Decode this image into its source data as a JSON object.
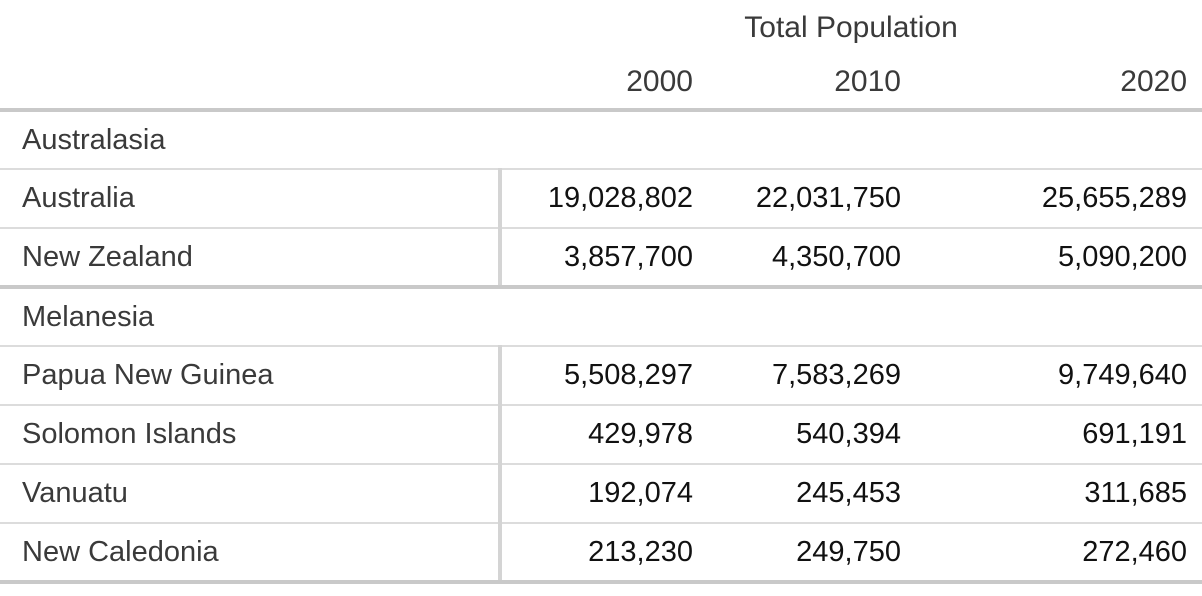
{
  "table": {
    "spanning_header": "Total Population",
    "year_columns": [
      "2000",
      "2010",
      "2020"
    ],
    "sections": [
      {
        "label": "Australasia",
        "rows": [
          {
            "name": "Australia",
            "values": [
              "19,028,802",
              "22,031,750",
              "25,655,289"
            ]
          },
          {
            "name": "New Zealand",
            "values": [
              "3,857,700",
              "4,350,700",
              "5,090,200"
            ]
          }
        ]
      },
      {
        "label": "Melanesia",
        "rows": [
          {
            "name": "Papua New Guinea",
            "values": [
              "5,508,297",
              "7,583,269",
              "9,749,640"
            ]
          },
          {
            "name": "Solomon Islands",
            "values": [
              "429,978",
              "540,394",
              "691,191"
            ]
          },
          {
            "name": "Vanuatu",
            "values": [
              "192,074",
              "245,453",
              "311,685"
            ]
          },
          {
            "name": "New Caledonia",
            "values": [
              "213,230",
              "249,750",
              "272,460"
            ]
          }
        ]
      }
    ]
  },
  "chart_data": {
    "type": "table",
    "title": "Total Population",
    "columns": [
      "2000",
      "2010",
      "2020"
    ],
    "rows": [
      {
        "group": "Australasia",
        "name": "Australia",
        "values": [
          19028802,
          22031750,
          25655289
        ]
      },
      {
        "group": "Australasia",
        "name": "New Zealand",
        "values": [
          3857700,
          4350700,
          5090200
        ]
      },
      {
        "group": "Melanesia",
        "name": "Papua New Guinea",
        "values": [
          5508297,
          7583269,
          9749640
        ]
      },
      {
        "group": "Melanesia",
        "name": "Solomon Islands",
        "values": [
          429978,
          540394,
          691191
        ]
      },
      {
        "group": "Melanesia",
        "name": "Vanuatu",
        "values": [
          192074,
          245453,
          311685
        ]
      },
      {
        "group": "Melanesia",
        "name": "New Caledonia",
        "values": [
          213230,
          249750,
          272460
        ]
      }
    ]
  },
  "colors": {
    "label_text": "#3a3a3a",
    "number_text": "#111111",
    "rule_major": "#c9c9c9",
    "rule_minor": "#dcdcdc",
    "column_divider": "#d4d4d4",
    "background": "#ffffff"
  }
}
